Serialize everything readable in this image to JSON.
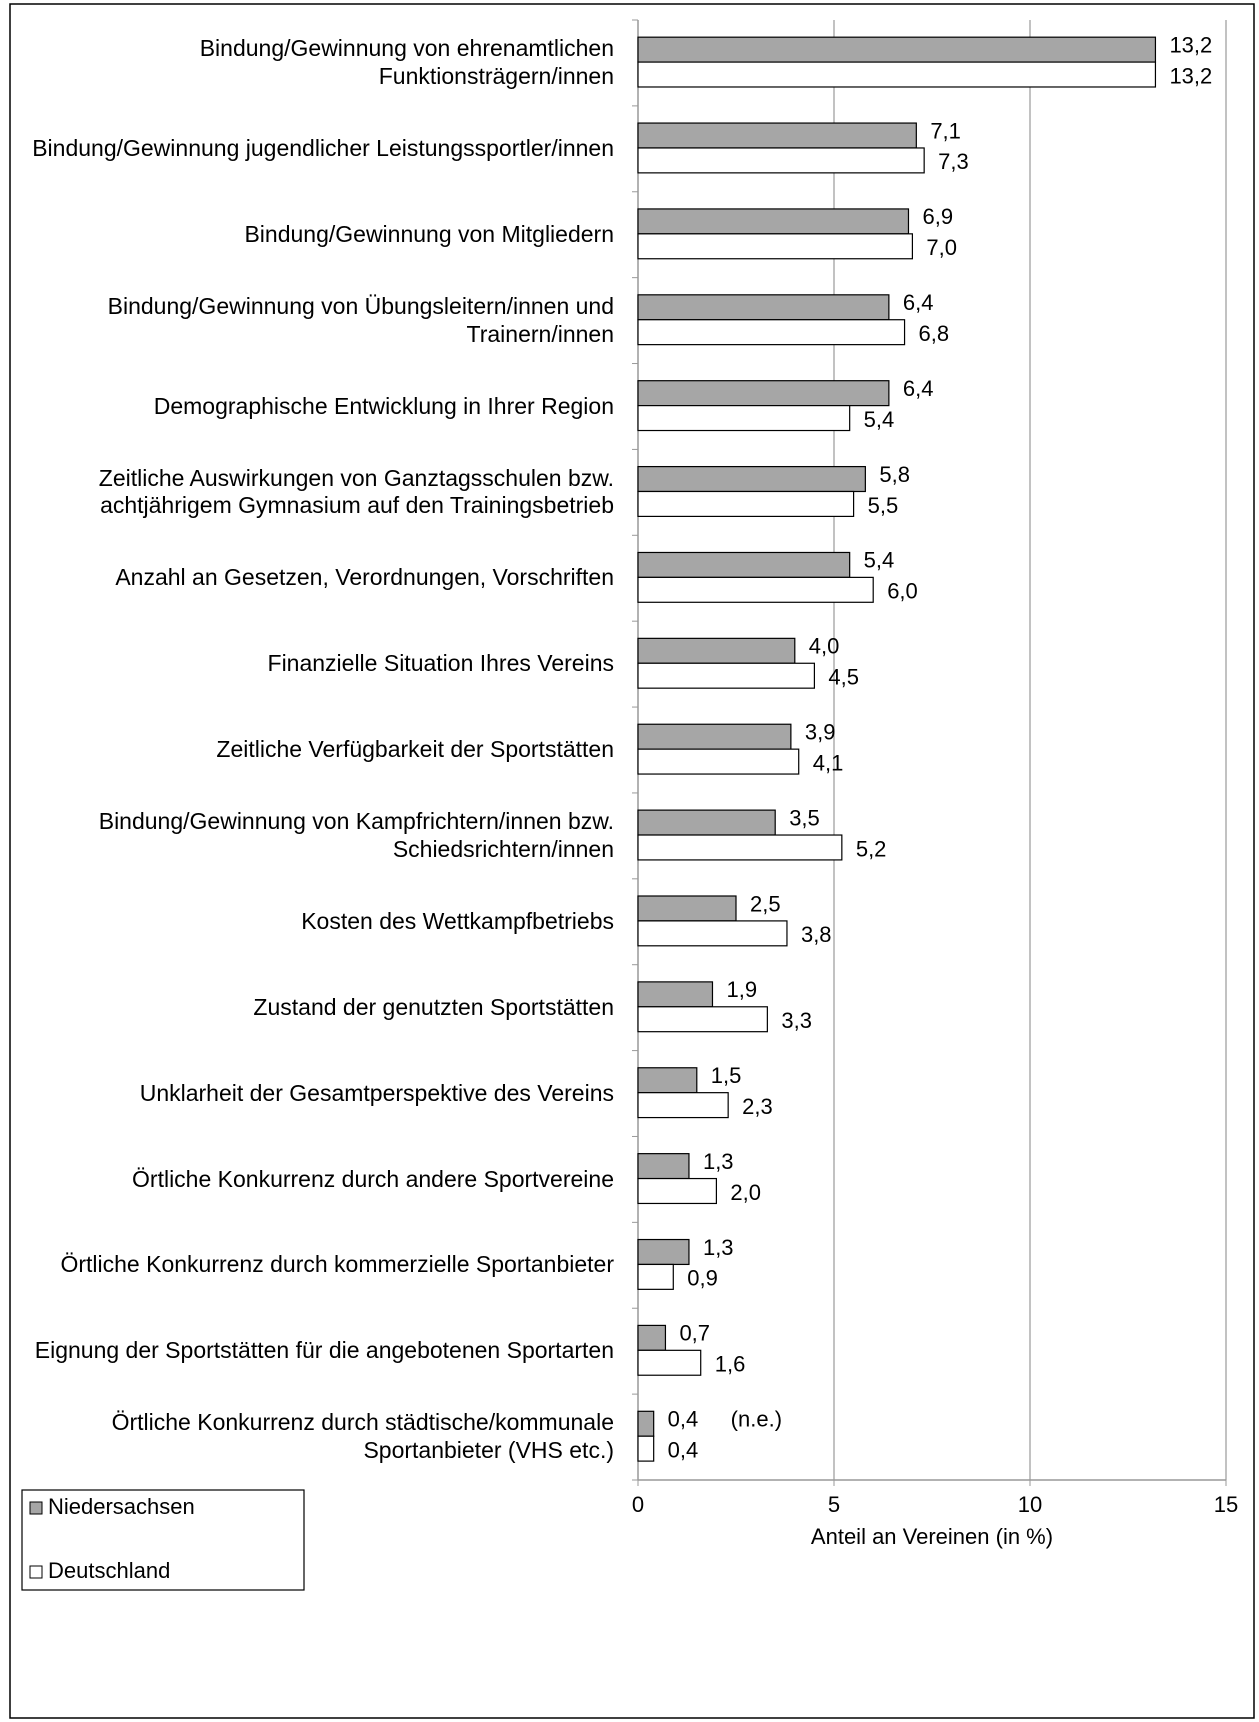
{
  "chart_data": {
    "type": "bar",
    "orientation": "horizontal",
    "xlabel": "Anteil an Vereinen (in %)",
    "categories": [
      "Bindung/Gewinnung von ehrenamtlichen Funktionsträgern/innen",
      "Bindung/Gewinnung jugendlicher Leistungssportler/innen",
      "Bindung/Gewinnung von Mitgliedern",
      "Bindung/Gewinnung von Übungsleitern/innen und Trainern/innen",
      "Demographische Entwicklung in Ihrer Region",
      "Zeitliche Auswirkungen von Ganztagsschulen bzw. achtjährigem Gymnasium auf den Trainingsbetrieb",
      "Anzahl an Gesetzen, Verordnungen, Vorschriften",
      "Finanzielle Situation Ihres Vereins",
      "Zeitliche Verfügbarkeit der Sportstätten",
      "Bindung/Gewinnung von Kampfrichtern/innen bzw. Schiedsrichtern/innen",
      "Kosten des Wettkampfbetriebs",
      "Zustand der genutzten Sportstätten",
      "Unklarheit der Gesamtperspektive des Vereins",
      "Örtliche Konkurrenz durch andere Sportvereine",
      "Örtliche Konkurrenz durch kommerzielle Sportanbieter",
      "Eignung der Sportstätten für die angebotenen Sportarten",
      "Örtliche Konkurrenz durch städtische/kommunale Sportanbieter (VHS etc.)"
    ],
    "series": [
      {
        "name": "Niedersachsen",
        "color": "#a6a6a6",
        "values": [
          13.2,
          7.1,
          6.9,
          6.4,
          6.4,
          5.8,
          5.4,
          4.0,
          3.9,
          3.5,
          2.5,
          1.9,
          1.5,
          1.3,
          1.3,
          0.7,
          0.4
        ],
        "value_labels": [
          "13,2",
          "7,1",
          "6,9",
          "6,4",
          "6,4",
          "5,8",
          "5,4",
          "4,0",
          "3,9",
          "3,5",
          "2,5",
          "1,9",
          "1,5",
          "1,3",
          "1,3",
          "0,7",
          "0,4"
        ]
      },
      {
        "name": "Deutschland",
        "color": "#ffffff",
        "values": [
          13.2,
          7.3,
          7.0,
          6.8,
          5.4,
          5.5,
          6.0,
          4.5,
          4.1,
          5.2,
          3.8,
          3.3,
          2.3,
          2.0,
          0.9,
          1.6,
          0.4
        ],
        "value_labels": [
          "13,2",
          "7,3",
          "7,0",
          "6,8",
          "5,4",
          "5,5",
          "6,0",
          "4,5",
          "4,1",
          "5,2",
          "3,8",
          "3,3",
          "2,3",
          "2,0",
          "0,9",
          "1,6",
          "0,4"
        ]
      }
    ],
    "annotations": [
      {
        "text": "(n.e.)",
        "category": 16
      }
    ],
    "xlim": [
      0,
      15
    ],
    "xticks": [
      0,
      5,
      10,
      15
    ],
    "grid": true,
    "legend": "bottom-left"
  }
}
